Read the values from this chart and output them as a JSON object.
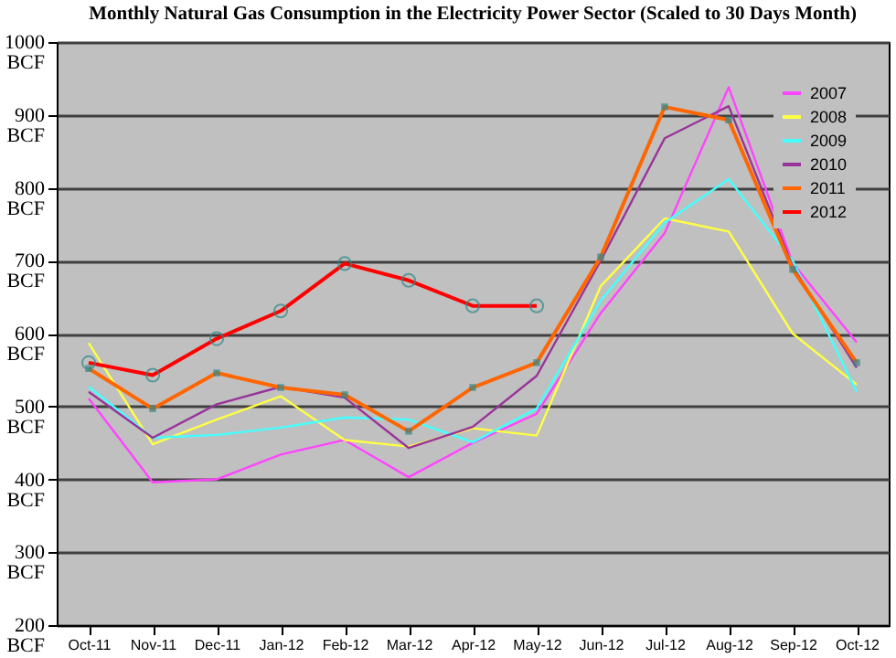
{
  "chart_data": {
    "type": "line",
    "title": "Monthly Natural Gas Consumption in the Electricity Power Sector (Scaled to 30 Days Month)",
    "categories": [
      "Oct-11",
      "Nov-11",
      "Dec-11",
      "Jan-12",
      "Feb-12",
      "Mar-12",
      "Apr-12",
      "May-12",
      "Jun-12",
      "Jul-12",
      "Aug-12",
      "Sep-12",
      "Oct-12"
    ],
    "series": [
      {
        "name": "2007",
        "color": "#ff44ff",
        "marker": "none",
        "values": [
          511,
          396,
          400,
          434,
          454,
          403,
          450,
          490,
          628,
          738,
          938,
          697,
          588
        ]
      },
      {
        "name": "2008",
        "color": "#ffff44",
        "marker": "none",
        "values": [
          587,
          448,
          482,
          514,
          454,
          445,
          470,
          460,
          665,
          758,
          740,
          600,
          530
        ]
      },
      {
        "name": "2009",
        "color": "#44ffff",
        "marker": "none",
        "values": [
          527,
          457,
          461,
          471,
          485,
          482,
          451,
          497,
          645,
          752,
          812,
          700,
          520
        ]
      },
      {
        "name": "2010",
        "color": "#993399",
        "marker": "none",
        "values": [
          520,
          457,
          503,
          527,
          512,
          443,
          472,
          542,
          700,
          868,
          912,
          692,
          553
        ]
      },
      {
        "name": "2011",
        "color": "#ff6600",
        "marker": "square",
        "values": [
          552,
          497,
          546,
          526,
          516,
          466,
          526,
          560,
          705,
          911,
          893,
          688,
          560
        ]
      },
      {
        "name": "2012",
        "color": "#ff0000",
        "marker": "circle",
        "values": [
          560,
          543,
          593,
          631,
          696,
          673,
          638,
          638,
          null,
          null,
          null,
          null,
          null
        ]
      }
    ],
    "ylim": [
      200,
      1000
    ],
    "yticks": [
      {
        "value": 200,
        "label": "200\nBCF"
      },
      {
        "value": 300,
        "label": "300\nBCF"
      },
      {
        "value": 400,
        "label": "400\nBCF"
      },
      {
        "value": 500,
        "label": "500\nBCF"
      },
      {
        "value": 600,
        "label": "600\nBCF"
      },
      {
        "value": 700,
        "label": "700\nBCF"
      },
      {
        "value": 800,
        "label": "800\nBCF"
      },
      {
        "value": 900,
        "label": "900\nBCF"
      },
      {
        "value": 1000,
        "label": "1000\nBCF"
      }
    ],
    "grid": "y",
    "legend": "top right"
  }
}
